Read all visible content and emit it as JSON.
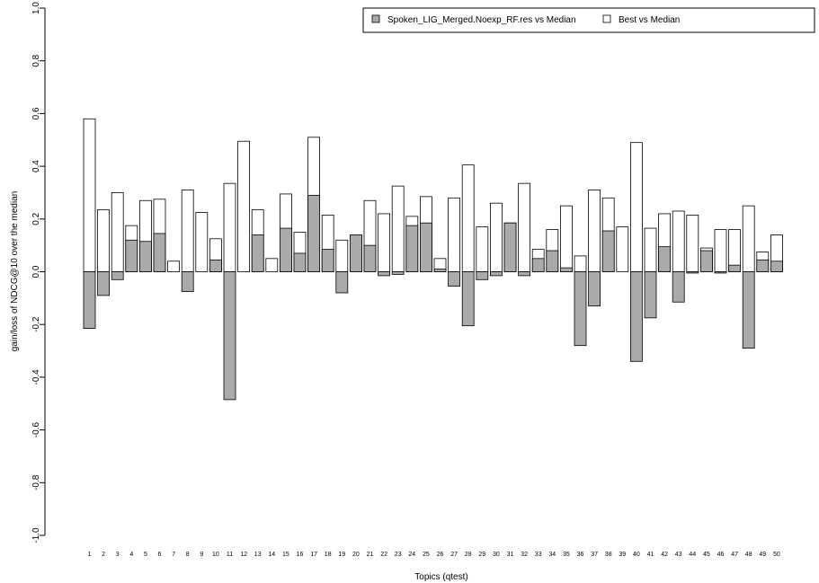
{
  "chart_data": {
    "type": "bar",
    "title": "",
    "xlabel": "Topics (qtest)",
    "ylabel": "gain/loss of NDCG@10 over the median",
    "ylim": [
      -1.0,
      1.0
    ],
    "yticks": [
      "-1.0",
      "-0.8",
      "-0.6",
      "-0.4",
      "-0.2",
      "0.0",
      "0.2",
      "0.4",
      "0.6",
      "0.8",
      "1.0"
    ],
    "grid": false,
    "legend_position": "top-right",
    "categories": [
      "1",
      "2",
      "3",
      "4",
      "5",
      "6",
      "7",
      "8",
      "9",
      "10",
      "11",
      "12",
      "13",
      "14",
      "15",
      "16",
      "17",
      "18",
      "19",
      "20",
      "21",
      "22",
      "23",
      "24",
      "25",
      "26",
      "27",
      "28",
      "29",
      "30",
      "31",
      "32",
      "33",
      "34",
      "35",
      "36",
      "37",
      "38",
      "39",
      "40",
      "41",
      "42",
      "43",
      "44",
      "45",
      "46",
      "47",
      "48",
      "49",
      "50"
    ],
    "series": [
      {
        "name": "Best vs Median",
        "color": "#ffffff",
        "values": [
          0.58,
          0.235,
          0.3,
          0.175,
          0.27,
          0.275,
          0.04,
          0.31,
          0.225,
          0.125,
          0.335,
          0.495,
          0.235,
          0.05,
          0.295,
          0.15,
          0.51,
          0.215,
          0.12,
          0.14,
          0.27,
          0.22,
          0.325,
          0.21,
          0.285,
          0.05,
          0.28,
          0.405,
          0.17,
          0.26,
          0.185,
          0.335,
          0.085,
          0.16,
          0.25,
          0.06,
          0.31,
          0.28,
          0.17,
          0.49,
          0.165,
          0.22,
          0.23,
          0.215,
          0.09,
          0.16,
          0.16,
          0.25,
          0.075,
          0.14
        ]
      },
      {
        "name": "Spoken_LIG_Merged.Noexp_RF.res vs Median",
        "color": "#aaaaaa",
        "values": [
          -0.215,
          -0.09,
          -0.03,
          0.12,
          0.115,
          0.145,
          0.0,
          -0.075,
          0.0,
          0.045,
          -0.485,
          0.0,
          0.14,
          0.0,
          0.165,
          0.07,
          0.29,
          0.085,
          -0.08,
          0.14,
          0.1,
          -0.015,
          -0.01,
          0.175,
          0.185,
          0.01,
          -0.055,
          -0.205,
          -0.03,
          -0.015,
          0.185,
          -0.015,
          0.05,
          0.08,
          0.015,
          -0.28,
          -0.13,
          0.155,
          0.0,
          -0.34,
          -0.175,
          0.095,
          -0.115,
          -0.005,
          0.08,
          -0.005,
          0.025,
          -0.29,
          0.045,
          0.04
        ]
      }
    ]
  },
  "legend": {
    "items": [
      {
        "label": "Spoken_LIG_Merged.Noexp_RF.res vs Median",
        "color": "#aaaaaa"
      },
      {
        "label": "Best vs Median",
        "color": "#ffffff"
      }
    ]
  }
}
